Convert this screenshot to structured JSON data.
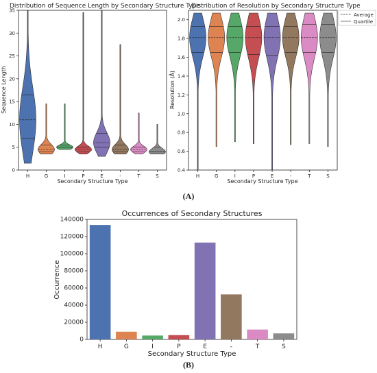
{
  "figure": {
    "label_a": "(A)",
    "label_b": "(B)"
  },
  "legend": {
    "items": [
      {
        "label": "Average",
        "style": "dashed"
      },
      {
        "label": "Quartile",
        "style": "solid"
      }
    ]
  },
  "colors": {
    "H": "#4c72b0",
    "G": "#dd8452",
    "I": "#55a868",
    "P": "#c44e52",
    "E": "#8172b3",
    "-": "#937860",
    "T": "#da8bc3",
    "S": "#8c8c8c",
    "violin_right_I": "#8172b3",
    "violin_right_P": "#8c8c8c"
  },
  "chart_data": [
    {
      "type": "violin",
      "title": "Distribution of Sequence Length by Secondary Structure Type",
      "xlabel": "Secondary Structure Type",
      "ylabel": "Sequence Length",
      "categories": [
        "H",
        "G",
        "I",
        "P",
        "E",
        "-",
        "T",
        "S"
      ],
      "ylim": [
        0,
        35
      ],
      "yticks": [
        0,
        5,
        10,
        15,
        20,
        25,
        30,
        35
      ],
      "medians": [
        11,
        4.5,
        5,
        4.5,
        6,
        4.5,
        4.5,
        4
      ],
      "quartiles": [
        [
          7,
          16.5
        ],
        [
          4,
          5.5
        ],
        [
          5,
          5.5
        ],
        [
          4,
          5
        ],
        [
          5,
          8
        ],
        [
          4,
          5.5
        ],
        [
          4,
          5
        ],
        [
          4,
          5
        ]
      ],
      "ranges": [
        [
          1.5,
          35
        ],
        [
          3.5,
          14.5
        ],
        [
          4.5,
          14.5
        ],
        [
          3.5,
          34.5
        ],
        [
          3,
          35
        ],
        [
          3.5,
          27.5
        ],
        [
          3.5,
          12.5
        ],
        [
          3.5,
          10
        ]
      ],
      "grid": false
    },
    {
      "type": "violin",
      "title": "Distribution of Resolution by Secondary Structure Type",
      "xlabel": "Secondary Structure Type",
      "ylabel": "Resolution (Å)",
      "categories": [
        "H",
        "G",
        "I",
        "P",
        "E",
        "-",
        "T",
        "S"
      ],
      "ylim": [
        0.4,
        2.1
      ],
      "yticks": [
        0.4,
        0.6,
        0.8,
        1.0,
        1.2,
        1.4,
        1.6,
        1.8,
        2.0
      ],
      "ytick_labels": [
        "0.4",
        "0.6",
        "0.8",
        "1.0",
        "1.2",
        "1.4",
        "1.6",
        "1.8",
        "2.0"
      ],
      "medians": [
        1.81,
        1.81,
        1.81,
        1.81,
        1.81,
        1.81,
        1.81,
        1.81
      ],
      "quartiles": [
        [
          1.65,
          1.93
        ],
        [
          1.65,
          1.93
        ],
        [
          1.65,
          1.93
        ],
        [
          1.63,
          1.93
        ],
        [
          1.62,
          1.93
        ],
        [
          1.65,
          1.93
        ],
        [
          1.65,
          1.95
        ],
        [
          1.65,
          1.95
        ]
      ],
      "ranges": [
        [
          0.4,
          2.07
        ],
        [
          0.65,
          2.07
        ],
        [
          0.7,
          2.07
        ],
        [
          0.68,
          2.07
        ],
        [
          0.4,
          2.07
        ],
        [
          0.67,
          2.07
        ],
        [
          0.68,
          2.07
        ],
        [
          0.65,
          2.07
        ]
      ],
      "legend": [
        "Average",
        "Quartile"
      ],
      "legend_position": "outside-top-right",
      "grid": false
    },
    {
      "type": "bar",
      "title": "Occurrences of Secondary Structures",
      "xlabel": "Secondary Structure Type",
      "ylabel": "Occurrence",
      "categories": [
        "H",
        "G",
        "I",
        "P",
        "E",
        "-",
        "T",
        "S"
      ],
      "values": [
        133500,
        9000,
        4500,
        5000,
        113000,
        52500,
        11500,
        7000
      ],
      "ylim": [
        0,
        140000
      ],
      "yticks": [
        0,
        20000,
        40000,
        60000,
        80000,
        100000,
        120000,
        140000
      ],
      "grid": false
    }
  ]
}
